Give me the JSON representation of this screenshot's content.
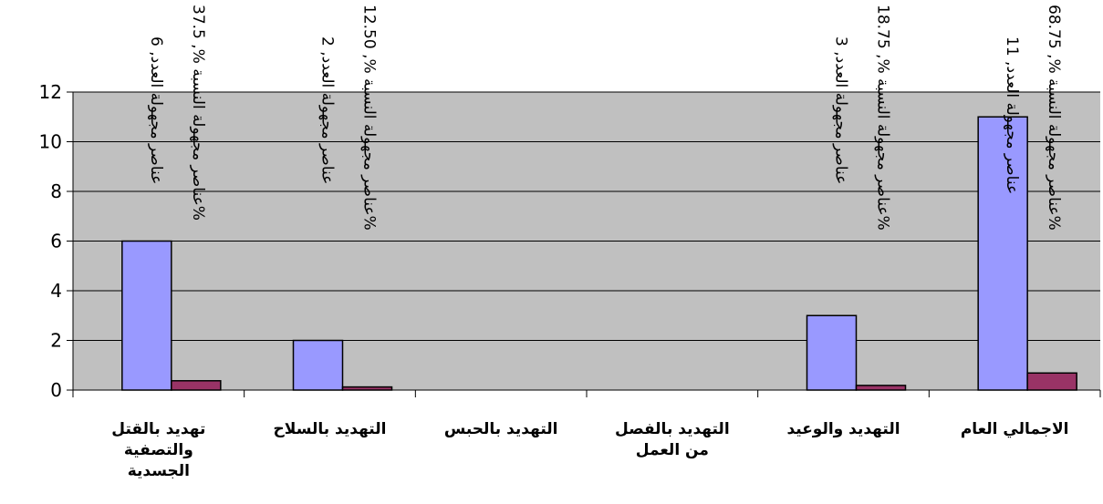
{
  "chart_data": {
    "type": "bar",
    "categories": [
      [
        "تهديد بالقتل",
        "والتصفية",
        "الجسدية"
      ],
      [
        "التهديد بالسلاح"
      ],
      [
        "التهديد بالحبس"
      ],
      [
        "التهديد بالفصل",
        "من العمل"
      ],
      [
        "التهديد والوعيد"
      ],
      [
        "الاجمالي العام"
      ]
    ],
    "series": [
      {
        "values": [
          6,
          2,
          null,
          null,
          3,
          11
        ],
        "color": "#9999ff",
        "labels": [
          "عناصر مجهولة العدد, 6",
          "عناصر مجهولة العدد, 2",
          "",
          "",
          "عناصر مجهولة العدد, 3",
          "عناصر مجهولة العدد, 11"
        ]
      },
      {
        "values": [
          0.375,
          0.125,
          null,
          null,
          0.1875,
          0.6875
        ],
        "color": "#993366",
        "labels": [
          "عناصر مجهولة النسبة %, 37.5%",
          "عناصر مجهولة النسبة %, 12.50%",
          "",
          "",
          "عناصر مجهولة النسبة %, 18.75%",
          "عناصر مجهولة النسبة %, 68.75%"
        ]
      }
    ],
    "yticks": [
      "0",
      "2",
      "4",
      "6",
      "8",
      "10",
      "12"
    ],
    "ylim": [
      0,
      12
    ],
    "plot_background": "#c0c0c0",
    "grid": true,
    "legend": "none"
  }
}
